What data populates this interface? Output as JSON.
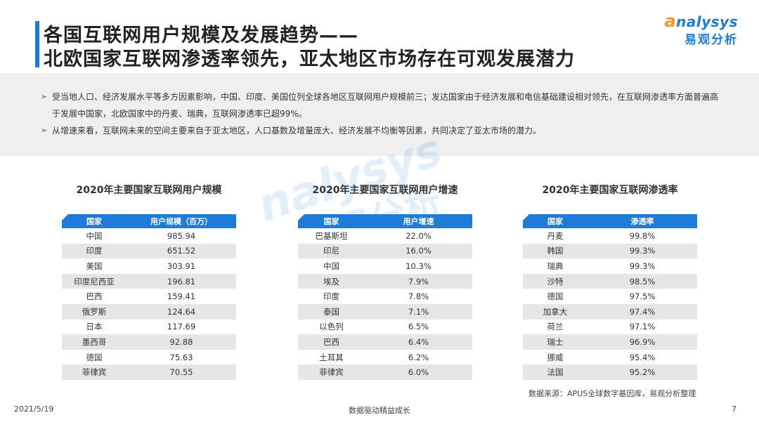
{
  "header": {
    "title_line1": "各国互联网用户规模及发展趋势——",
    "title_line2": "北欧国家互联网渗透率领先，亚太地区市场存在可观发展潜力",
    "logo_en": "nalysys",
    "logo_cn": "易观分析"
  },
  "summary": [
    "受当地人口、经济发展水平等多方因素影响，中国、印度、美国位列全球各地区互联网用户规模前三；发达国家由于经济发展和电信基础建设相对领先，在互联网渗透率方面普遍高于发展中国家，北欧国家中的丹麦、瑞典，互联网渗透率已超99%。",
    "从增速来看，互联网未来的空间主要来自于亚太地区，人口基数及增量庞大、经济发展不均衡等因素，共同决定了亚太市场的潜力。"
  ],
  "tables": [
    {
      "title": "2020年主要国家互联网用户规模",
      "headers": [
        "国家",
        "用户规模（百万）"
      ],
      "rows": [
        [
          "中国",
          "985.94"
        ],
        [
          "印度",
          "651.52"
        ],
        [
          "美国",
          "303.91"
        ],
        [
          "印度尼西亚",
          "196.81"
        ],
        [
          "巴西",
          "159.41"
        ],
        [
          "俄罗斯",
          "124.64"
        ],
        [
          "日本",
          "117.69"
        ],
        [
          "墨西哥",
          "92.88"
        ],
        [
          "德国",
          "75.63"
        ],
        [
          "菲律宾",
          "70.55"
        ]
      ]
    },
    {
      "title": "2020年主要国家互联网用户增速",
      "headers": [
        "国家",
        "用户增速"
      ],
      "rows": [
        [
          "巴基斯坦",
          "22.0%"
        ],
        [
          "印尼",
          "16.0%"
        ],
        [
          "中国",
          "10.3%"
        ],
        [
          "埃及",
          "7.9%"
        ],
        [
          "印度",
          "7.8%"
        ],
        [
          "泰国",
          "7.1%"
        ],
        [
          "以色列",
          "6.5%"
        ],
        [
          "巴西",
          "6.4%"
        ],
        [
          "土耳其",
          "6.2%"
        ],
        [
          "菲律宾",
          "6.0%"
        ]
      ]
    },
    {
      "title": "2020年主要国家互联网渗透率",
      "headers": [
        "国家",
        "渗透率"
      ],
      "rows": [
        [
          "丹麦",
          "99.8%"
        ],
        [
          "韩国",
          "99.3%"
        ],
        [
          "瑞典",
          "99.3%"
        ],
        [
          "沙特",
          "98.5%"
        ],
        [
          "德国",
          "97.5%"
        ],
        [
          "加拿大",
          "97.4%"
        ],
        [
          "荷兰",
          "97.1%"
        ],
        [
          "瑞士",
          "96.9%"
        ],
        [
          "挪威",
          "95.4%"
        ],
        [
          "法国",
          "95.2%"
        ]
      ]
    }
  ],
  "source": "数据来源：APUS全球数字基因库，易观分析整理",
  "footer": {
    "date": "2021/5/19",
    "slogan": "数据驱动精益成长",
    "page": "7"
  },
  "colors": {
    "accent": "#1e7bd8",
    "logo_orange": "#f39a1e",
    "row_stripe": "#e6e6e6",
    "summary_bg": "#efefef"
  }
}
